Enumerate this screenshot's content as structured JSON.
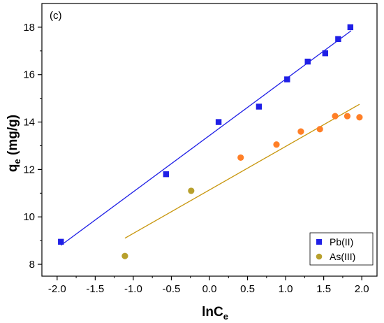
{
  "chart_data": {
    "type": "scatter",
    "panel_label": "(c)",
    "xlabel": {
      "main": "lnC",
      "sub": "e"
    },
    "ylabel": {
      "main": "q",
      "sub": "e",
      "suffix": " (mg/g)"
    },
    "xlim": [
      -2.2,
      2.2
    ],
    "ylim": [
      7.5,
      19.0
    ],
    "x_ticks": [
      -2.0,
      -1.5,
      -1.0,
      -0.5,
      0.0,
      0.5,
      1.0,
      1.5,
      2.0
    ],
    "x_tick_labels": [
      "-2.0",
      "-1.5",
      "-1.0",
      "-0.5",
      "0.0",
      "0.5",
      "1.0",
      "1.5",
      "2.0"
    ],
    "y_ticks": [
      8,
      10,
      12,
      14,
      16,
      18
    ],
    "y_tick_labels": [
      "8",
      "10",
      "12",
      "14",
      "16",
      "18"
    ],
    "legend_position": "bottom-right",
    "series": [
      {
        "name": "Pb(II)",
        "marker": "square",
        "color": "#1f1fe6",
        "line_color": "#1f1fe6",
        "points": [
          [
            -1.95,
            8.95
          ],
          [
            -0.57,
            11.8
          ],
          [
            0.12,
            14.0
          ],
          [
            0.65,
            14.65
          ],
          [
            1.02,
            15.8
          ],
          [
            1.29,
            16.55
          ],
          [
            1.52,
            16.9
          ],
          [
            1.69,
            17.5
          ],
          [
            1.85,
            18.0
          ]
        ],
        "fit": {
          "x": [
            -1.95,
            1.86
          ],
          "y": [
            8.8,
            17.85
          ]
        }
      },
      {
        "name": "As(III)",
        "marker": "circle",
        "color": "#ff7f27",
        "legend_color": "#b8a02c",
        "line_color": "#c8960c",
        "points": [
          {
            "x": -1.11,
            "y": 8.35,
            "color": "#b8a02c"
          },
          {
            "x": -0.24,
            "y": 11.1,
            "color": "#b8a02c"
          },
          {
            "x": 0.41,
            "y": 12.5
          },
          {
            "x": 0.88,
            "y": 13.05
          },
          {
            "x": 1.2,
            "y": 13.6
          },
          {
            "x": 1.45,
            "y": 13.7
          },
          {
            "x": 1.65,
            "y": 14.25
          },
          {
            "x": 1.81,
            "y": 14.25
          },
          {
            "x": 1.97,
            "y": 14.2
          }
        ],
        "fit": {
          "x": [
            -1.11,
            1.97
          ],
          "y": [
            9.1,
            14.75
          ]
        }
      }
    ]
  }
}
